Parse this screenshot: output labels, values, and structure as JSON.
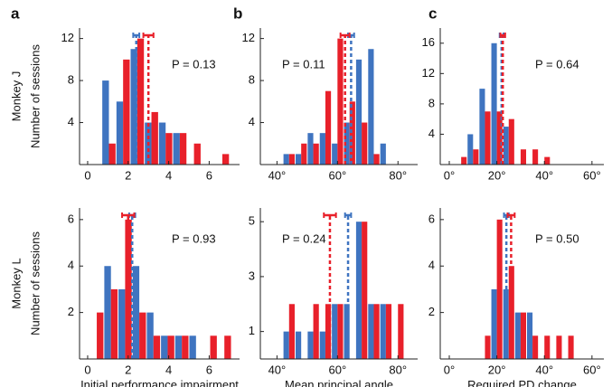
{
  "chart_data": [
    {
      "type": "histogram",
      "panel": "a",
      "row_label": "Monkey J",
      "ylabel": "Number of sessions",
      "p_label": "P = 0.13",
      "bins": [
        0.7,
        1.4,
        2.1,
        2.8,
        3.5,
        4.2,
        4.9,
        5.6,
        6.3,
        7.0
      ],
      "series": [
        {
          "color": "#3f74c0",
          "values": [
            8,
            6,
            11,
            4,
            4,
            3,
            0,
            0,
            0
          ],
          "mean": 2.4,
          "mean_err": 0.15
        },
        {
          "color": "#e8202a",
          "values": [
            2,
            10,
            12,
            5,
            3,
            3,
            2,
            0,
            1
          ],
          "mean": 3.0,
          "mean_err": 0.25
        }
      ],
      "xlim": [
        -0.4,
        7.5
      ],
      "xticks": [
        0,
        2,
        4,
        6
      ],
      "ylim": [
        0,
        13
      ],
      "yticks": [
        4,
        8,
        12
      ]
    },
    {
      "type": "histogram",
      "panel": "b",
      "p_label": "P = 0.11",
      "bins": [
        42,
        46,
        50,
        54,
        58,
        62,
        66,
        70,
        74,
        78
      ],
      "series": [
        {
          "color": "#3f74c0",
          "values": [
            1,
            1,
            3,
            3,
            2,
            4,
            10,
            11,
            2
          ],
          "mean": 64.5,
          "mean_err": 1
        },
        {
          "color": "#e8202a",
          "values": [
            1,
            2,
            2,
            7,
            12,
            6,
            4,
            1,
            0
          ],
          "mean": 62.5,
          "mean_err": 1.5
        }
      ],
      "xlim": [
        34.5,
        86.5
      ],
      "xticks": [
        {
          "value": 40,
          "label": "40°"
        },
        {
          "value": 60,
          "label": "60°"
        },
        {
          "value": 80,
          "label": "80°"
        }
      ],
      "ylim": [
        0,
        13
      ],
      "yticks": [
        4,
        8,
        12
      ]
    },
    {
      "type": "histogram",
      "panel": "c",
      "p_label": "P = 0.64",
      "bins": [
        2.5,
        7.5,
        12.5,
        17.5,
        22.5,
        27.5,
        32.5,
        37.5,
        42.5,
        47.5,
        52.5,
        57.5
      ],
      "series": [
        {
          "color": "#3f74c0",
          "values": [
            0,
            4,
            10,
            16,
            5,
            0,
            0,
            0,
            0,
            0,
            0
          ],
          "mean": 22,
          "mean_err": 0.8
        },
        {
          "color": "#e8202a",
          "values": [
            1,
            2,
            7,
            7,
            6,
            2,
            2,
            1,
            0,
            0,
            0
          ],
          "mean": 22.5,
          "mean_err": 1
        }
      ],
      "xlim": [
        -3.8,
        65
      ],
      "xticks": [
        {
          "value": 0,
          "label": "0°"
        },
        {
          "value": 20,
          "label": "20°"
        },
        {
          "value": 40,
          "label": "40°"
        },
        {
          "value": 60,
          "label": "60°"
        }
      ],
      "ylim": [
        0,
        18
      ],
      "yticks": [
        4,
        8,
        12,
        16
      ]
    },
    {
      "type": "histogram",
      "row_label": "Monkey L",
      "ylabel": "Number of sessions",
      "xlabel": "Initial performance impairment",
      "p_label": "P = 0.93",
      "bins": [
        0.1,
        0.8,
        1.5,
        2.2,
        2.9,
        3.6,
        4.3,
        5.0,
        5.7,
        6.4,
        7.1
      ],
      "series": [
        {
          "color": "#3f74c0",
          "values": [
            0,
            4,
            3,
            4,
            2,
            1,
            1,
            1,
            0,
            0
          ],
          "mean": 2.2,
          "mean_err": 0.15
        },
        {
          "color": "#e8202a",
          "values": [
            2,
            3,
            6,
            2,
            1,
            1,
            1,
            0,
            1,
            1
          ],
          "mean": 2.0,
          "mean_err": 0.3
        }
      ],
      "xlim": [
        -0.4,
        7.5
      ],
      "xticks": [
        0,
        2,
        4,
        6
      ],
      "ylim": [
        0,
        6.5
      ],
      "yticks": [
        2,
        4,
        6
      ]
    },
    {
      "type": "histogram",
      "xlabel": "Mean principal angle",
      "p_label": "P = 0.24",
      "bins": [
        42,
        46,
        50,
        54,
        58,
        62,
        66,
        70,
        74,
        78,
        82
      ],
      "series": [
        {
          "color": "#3f74c0",
          "values": [
            1,
            1,
            1,
            1,
            2,
            2,
            5,
            2,
            2,
            0
          ],
          "mean": 63.5,
          "mean_err": 1
        },
        {
          "color": "#e8202a",
          "values": [
            2,
            0,
            2,
            2,
            2,
            0,
            5,
            2,
            2,
            2
          ],
          "mean": 57.5,
          "mean_err": 2
        }
      ],
      "xlim": [
        34.5,
        86.5
      ],
      "xticks": [
        {
          "value": 40,
          "label": "40°"
        },
        {
          "value": 60,
          "label": "60°"
        },
        {
          "value": 80,
          "label": "80°"
        }
      ],
      "ylim": [
        0,
        5.5
      ],
      "yticks": [
        1,
        3,
        5
      ]
    },
    {
      "type": "histogram",
      "xlabel": "Required PD change",
      "p_label": "P = 0.50",
      "bins": [
        2.5,
        7.5,
        12.5,
        17.5,
        22.5,
        27.5,
        32.5,
        37.5,
        42.5,
        47.5,
        52.5,
        57.5
      ],
      "series": [
        {
          "color": "#3f74c0",
          "values": [
            0,
            0,
            0,
            3,
            3,
            2,
            2,
            0,
            0,
            0,
            0
          ],
          "mean": 24,
          "mean_err": 1
        },
        {
          "color": "#e8202a",
          "values": [
            0,
            0,
            1,
            6,
            4,
            2,
            1,
            1,
            1,
            1,
            0
          ],
          "mean": 26,
          "mean_err": 1.5
        }
      ],
      "xlim": [
        -3.8,
        65
      ],
      "xticks": [
        {
          "value": 0,
          "label": "0°"
        },
        {
          "value": 20,
          "label": "20°"
        },
        {
          "value": 40,
          "label": "40°"
        },
        {
          "value": 60,
          "label": "60°"
        }
      ],
      "ylim": [
        0,
        6.5
      ],
      "yticks": [
        2,
        4,
        6
      ]
    }
  ]
}
